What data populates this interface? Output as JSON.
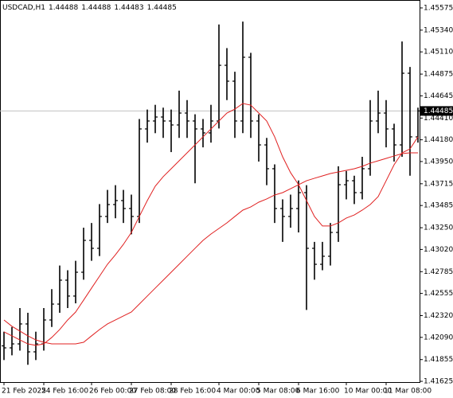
{
  "chart_data": {
    "type": "ohlc",
    "symbol": "USDCAD,H1",
    "header_values": [
      1.44488,
      1.44488,
      1.44483,
      1.44485
    ],
    "bar_color": "#000000",
    "open": [
      1.42,
      1.41979,
      1.42021,
      1.42232,
      1.41937,
      1.42021,
      1.42274,
      1.42442,
      1.42695,
      1.42527,
      1.42779,
      1.43116,
      1.43032,
      1.43369,
      1.43495,
      1.43537,
      1.43453,
      1.43369,
      1.44295,
      1.44379,
      1.44421,
      1.44379,
      1.44337,
      1.44463,
      1.44379,
      1.44295,
      1.44253,
      1.44379,
      1.44968,
      1.448,
      1.44379,
      1.45053,
      1.44379,
      1.44126,
      1.43874,
      1.43453,
      1.43369,
      1.43453,
      1.43621,
      1.43032,
      1.42863,
      1.42948,
      1.432,
      1.43705,
      1.43747,
      1.43621,
      1.43874,
      1.44379,
      1.44463,
      1.44295,
      1.44126,
      1.44884,
      1.44211
    ],
    "high": [
      1.4215,
      1.422,
      1.424,
      1.4235,
      1.4215,
      1.424,
      1.426,
      1.4285,
      1.428,
      1.429,
      1.4325,
      1.433,
      1.435,
      1.4365,
      1.437,
      1.4365,
      1.436,
      1.444,
      1.445,
      1.4455,
      1.4452,
      1.445,
      1.447,
      1.446,
      1.4445,
      1.444,
      1.4455,
      1.454,
      1.4515,
      1.449,
      1.4543,
      1.451,
      1.4445,
      1.442,
      1.4392,
      1.4355,
      1.436,
      1.4375,
      1.437,
      1.431,
      1.431,
      1.433,
      1.439,
      1.4385,
      1.438,
      1.44,
      1.446,
      1.447,
      1.446,
      1.4435,
      1.4522,
      1.4495,
      1.4452
    ],
    "low": [
      1.4185,
      1.419,
      1.4195,
      1.418,
      1.4185,
      1.4195,
      1.422,
      1.4235,
      1.424,
      1.4245,
      1.427,
      1.429,
      1.4295,
      1.433,
      1.4335,
      1.433,
      1.4318,
      1.433,
      1.4415,
      1.4425,
      1.442,
      1.4405,
      1.442,
      1.442,
      1.4372,
      1.441,
      1.4415,
      1.443,
      1.446,
      1.442,
      1.4425,
      1.442,
      1.4395,
      1.437,
      1.433,
      1.431,
      1.4325,
      1.432,
      1.4238,
      1.427,
      1.428,
      1.4285,
      1.431,
      1.4355,
      1.435,
      1.4355,
      1.438,
      1.4425,
      1.441,
      1.4395,
      1.44,
      1.438,
      1.4415
    ],
    "close": [
      1.41979,
      1.42021,
      1.42232,
      1.41937,
      1.42021,
      1.42274,
      1.42442,
      1.42695,
      1.42527,
      1.42779,
      1.43116,
      1.43032,
      1.43369,
      1.43495,
      1.43537,
      1.43453,
      1.43369,
      1.44295,
      1.44379,
      1.44421,
      1.44379,
      1.44337,
      1.44463,
      1.44379,
      1.44295,
      1.44253,
      1.44379,
      1.44968,
      1.448,
      1.44379,
      1.45053,
      1.44379,
      1.44126,
      1.43874,
      1.43453,
      1.43369,
      1.43453,
      1.43621,
      1.43032,
      1.42863,
      1.42948,
      1.432,
      1.43705,
      1.43747,
      1.43621,
      1.43874,
      1.44379,
      1.44463,
      1.44295,
      1.44126,
      1.44884,
      1.44211,
      1.44485
    ],
    "overlays": [
      {
        "color": "#e02020",
        "values": [
          1.42274,
          1.42207,
          1.42156,
          1.42106,
          1.42063,
          1.42038,
          1.42021,
          1.42021,
          1.42021,
          1.42021,
          1.42038,
          1.42106,
          1.42173,
          1.42232,
          1.42274,
          1.42316,
          1.42358,
          1.42442,
          1.42527,
          1.42611,
          1.42695,
          1.42779,
          1.42863,
          1.42948,
          1.43032,
          1.43116,
          1.43183,
          1.43242,
          1.43301,
          1.43369,
          1.43436,
          1.4347,
          1.4352,
          1.43554,
          1.43596,
          1.43621,
          1.43663,
          1.43705,
          1.43747,
          1.43773,
          1.43798,
          1.43823,
          1.4384,
          1.43857,
          1.43874,
          1.43899,
          1.43933,
          1.43958,
          1.43983,
          1.44009,
          1.44034,
          1.44042,
          1.44042
        ]
      },
      {
        "color": "#e02020",
        "values": [
          1.42148,
          1.42106,
          1.42063,
          1.42021,
          1.42005,
          1.42021,
          1.42089,
          1.42173,
          1.42274,
          1.42358,
          1.42484,
          1.42611,
          1.42737,
          1.42863,
          1.42964,
          1.43074,
          1.432,
          1.43369,
          1.43537,
          1.43689,
          1.4379,
          1.43874,
          1.43958,
          1.44042,
          1.44126,
          1.44211,
          1.44295,
          1.44379,
          1.44463,
          1.44505,
          1.44564,
          1.44547,
          1.44463,
          1.44379,
          1.44211,
          1.44,
          1.43832,
          1.43705,
          1.43537,
          1.43369,
          1.43268,
          1.43268,
          1.43301,
          1.43352,
          1.43385,
          1.43436,
          1.43495,
          1.43579,
          1.43747,
          1.43916,
          1.44042,
          1.44084,
          1.44211
        ]
      }
    ],
    "current_price": 1.44485,
    "ylim": [
      1.41617,
      1.45642
    ],
    "yticks": [
      1.45575,
      {
        "value": 1.4534,
        "label": "1.45340"
      },
      {
        "value": 1.4511,
        "label": "1.45110"
      },
      1.44875,
      1.44645,
      {
        "value": 1.4441,
        "label": "1.44410"
      },
      {
        "value": 1.4418,
        "label": "1.44180"
      },
      {
        "value": 1.4395,
        "label": "1.43950"
      },
      1.43715,
      1.43485,
      {
        "value": 1.4325,
        "label": "1.43250"
      },
      {
        "value": 1.4302,
        "label": "1.43020"
      },
      1.42785,
      1.42555,
      {
        "value": 1.4232,
        "label": "1.42320"
      },
      {
        "value": 1.4209,
        "label": "1.42090"
      },
      1.41855,
      1.41625
    ],
    "xticks": [
      {
        "value": 0,
        "label": "21 Feb 2025"
      },
      {
        "value": 5,
        "label": "24 Feb 16:00"
      },
      {
        "value": 11,
        "label": "26 Feb 00:00"
      },
      {
        "value": 16,
        "label": "27 Feb 08:00"
      },
      {
        "value": 21,
        "label": "28 Feb 16:00"
      },
      {
        "value": 27,
        "label": "4 Mar 00:00"
      },
      {
        "value": 32,
        "label": "5 Mar 08:00"
      },
      {
        "value": 37,
        "label": "6 Mar 16:00"
      },
      {
        "value": 43,
        "label": "10 Mar 00:00"
      },
      {
        "value": 48,
        "label": "11 Mar 08:00"
      }
    ]
  }
}
